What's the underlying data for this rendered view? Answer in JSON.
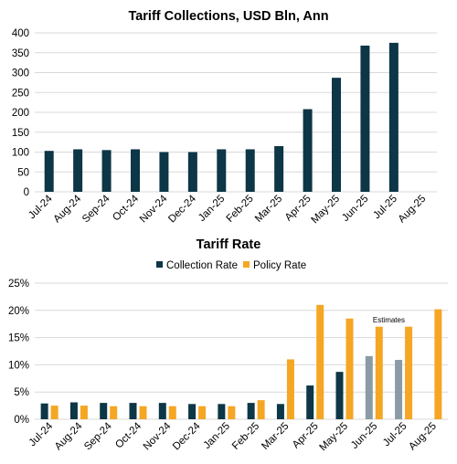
{
  "chart_data": [
    {
      "type": "bar",
      "title": "Tariff Collections, USD Bln, Ann",
      "categories": [
        "Jul-24",
        "Aug-24",
        "Sep-24",
        "Oct-24",
        "Nov-24",
        "Dec-24",
        "Jan-25",
        "Feb-25",
        "Mar-25",
        "Apr-25",
        "May-25",
        "Jun-25",
        "Jul-25",
        "Aug-25"
      ],
      "series": [
        {
          "values": [
            103,
            107,
            105,
            107,
            100,
            100,
            107,
            107,
            115,
            208,
            287,
            368,
            375,
            null
          ],
          "color": "#0d3646"
        }
      ],
      "ylim": [
        0,
        400
      ],
      "yticks": [
        "0",
        "50",
        "100",
        "150",
        "200",
        "250",
        "300",
        "350",
        "400"
      ],
      "grid": true
    },
    {
      "type": "bar",
      "title": "Tariff Rate",
      "categories": [
        "Jul-24",
        "Aug-24",
        "Sep-24",
        "Oct-24",
        "Nov-24",
        "Dec-24",
        "Jan-25",
        "Feb-25",
        "Mar-25",
        "Apr-25",
        "May-25",
        "Jun-25",
        "Jul-25",
        "Aug-25"
      ],
      "series": [
        {
          "name": "Collection Rate",
          "color": "#0d3646",
          "estimate_color": "#8a9ba5",
          "values": [
            2.9,
            3.1,
            3.0,
            3.0,
            3.0,
            2.8,
            2.8,
            3.0,
            2.8,
            6.2,
            8.7,
            11.6,
            10.9,
            null
          ],
          "estimate": [
            false,
            false,
            false,
            false,
            false,
            false,
            false,
            false,
            false,
            false,
            false,
            true,
            true,
            false
          ]
        },
        {
          "name": "Policy Rate",
          "color": "#f5a623",
          "values": [
            2.5,
            2.5,
            2.4,
            2.4,
            2.4,
            2.4,
            2.4,
            3.5,
            11.0,
            21.0,
            18.5,
            17.0,
            17.0,
            20.2
          ]
        }
      ],
      "ylim": [
        0,
        25
      ],
      "yticks": [
        "0%",
        "5%",
        "10%",
        "15%",
        "20%",
        "25%"
      ],
      "legend": "top-center",
      "annotation": "Estimates",
      "grid": true
    }
  ]
}
